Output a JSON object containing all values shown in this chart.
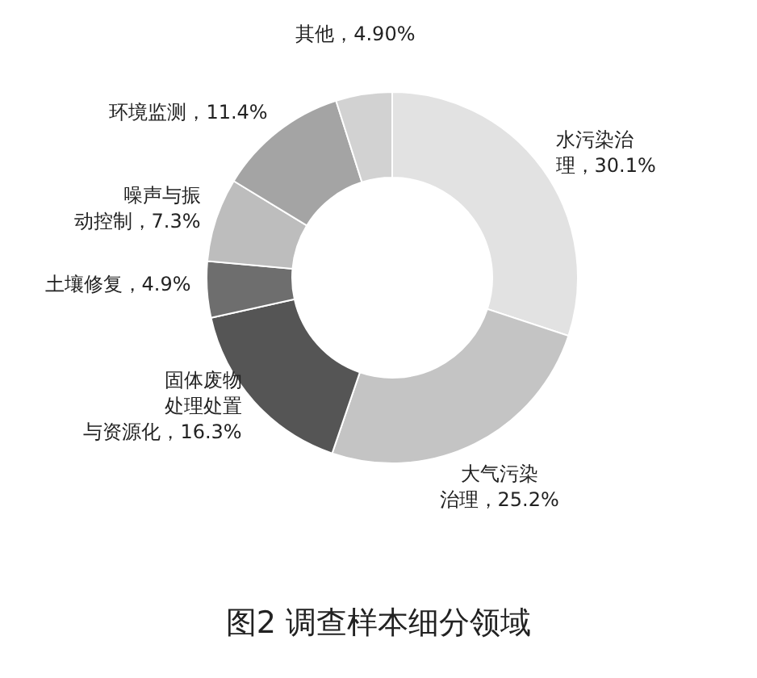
{
  "chart_data": {
    "type": "donut",
    "title": "图2 调查样本细分领域",
    "categories": [
      "水污染治理",
      "大气污染治理",
      "固体废物处理处置与资源化",
      "土壤修复",
      "噪声与振动控制",
      "环境监测",
      "其他"
    ],
    "values": [
      30.1,
      25.2,
      16.3,
      4.9,
      7.3,
      11.4,
      4.9
    ],
    "value_labels": [
      "，30.1%",
      "，25.2%",
      "，16.3%",
      "，4.9%",
      "，7.3%",
      "，11.4%",
      "，4.90%"
    ],
    "colors": [
      "#e2e2e2",
      "#c4c4c4",
      "#555555",
      "#6e6e6e",
      "#bdbdbd",
      "#a4a4a4",
      "#d2d2d2"
    ]
  }
}
